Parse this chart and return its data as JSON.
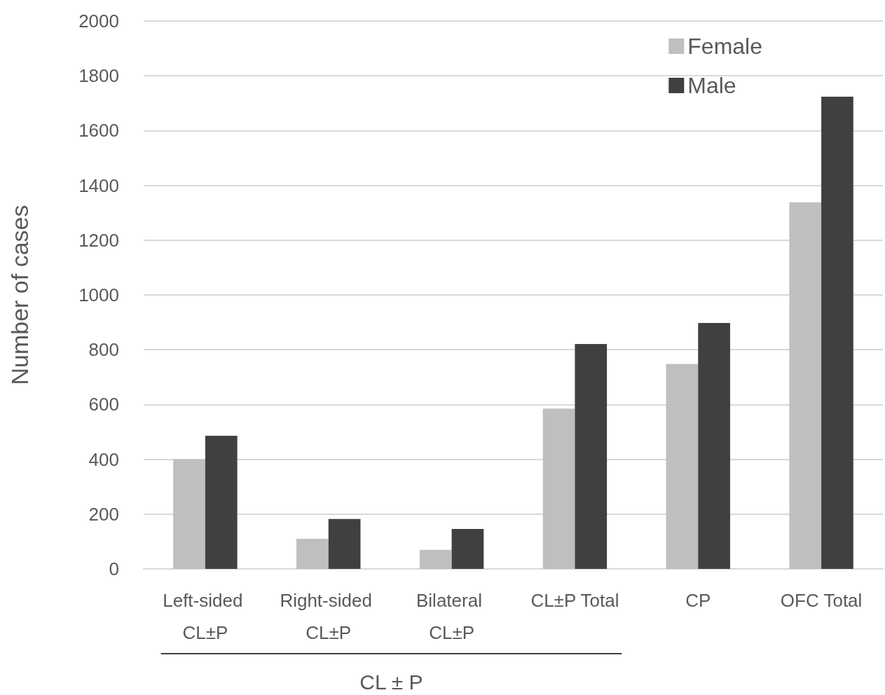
{
  "chart_data": {
    "type": "bar",
    "ylabel": "Number of cases",
    "categories": [
      "Left-sided CL±P",
      "Right-sided CL±P",
      "Bilateral CL±P",
      "CL±P Total",
      "CP",
      "OFC Total"
    ],
    "series": [
      {
        "name": "Female",
        "color": "#bfbfbf",
        "values": [
          400,
          110,
          70,
          585,
          748,
          1338
        ]
      },
      {
        "name": "Male",
        "color": "#404040",
        "values": [
          486,
          182,
          146,
          821,
          898,
          1724
        ]
      }
    ],
    "ylim": [
      0,
      2000
    ],
    "yticks": [
      0,
      200,
      400,
      600,
      800,
      1000,
      1200,
      1400,
      1600,
      1800,
      2000
    ],
    "grid": "y",
    "legend": "top right",
    "annotations": [
      "CL ± P"
    ]
  }
}
